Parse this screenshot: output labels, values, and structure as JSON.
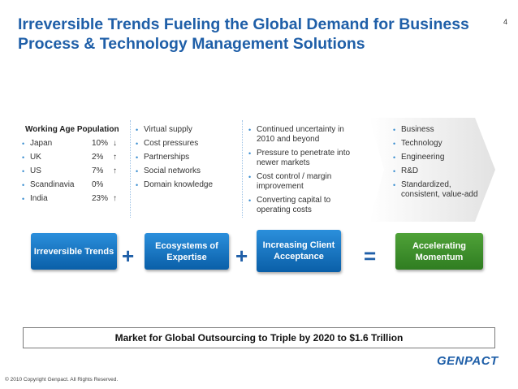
{
  "slide": {
    "title": "Irreversible Trends Fueling the Global Demand for Business Process & Technology Management Solutions",
    "page_number": "4"
  },
  "working_age": {
    "heading": "Working Age Population",
    "rows": [
      {
        "country": "Japan",
        "value": "10%",
        "arrow": "↓"
      },
      {
        "country": "UK",
        "value": "2%",
        "arrow": "↑"
      },
      {
        "country": "US",
        "value": "7%",
        "arrow": "↑"
      },
      {
        "country": "Scandinavia",
        "value": "0%",
        "arrow": ""
      },
      {
        "country": "India",
        "value": "23%",
        "arrow": "↑"
      }
    ]
  },
  "ecosystems_list": [
    "Virtual supply",
    "Cost pressures",
    "Partnerships",
    "Social networks",
    "Domain knowledge"
  ],
  "client_list": [
    "Continued uncertainty in 2010 and beyond",
    "Pressure to penetrate into newer markets",
    "Cost control / margin improvement",
    "Converting capital to operating costs"
  ],
  "momentum_list": [
    "Business",
    "Technology",
    "Engineering",
    "R&D",
    "Standardized, consistent, value-add"
  ],
  "boxes": {
    "irreversible": "Irreversible Trends",
    "ecosystems": "Ecosystems of Expertise",
    "client": "Increasing Client Acceptance",
    "momentum": "Accelerating Momentum"
  },
  "operators": {
    "plus": "+",
    "equals": "="
  },
  "colors": {
    "title_blue": "#1f5fa8",
    "box_blue": "#0f74c6",
    "box_green": "#3c8f2b"
  },
  "market_banner": "Market for Global Outsourcing to Triple by 2020 to $1.6 Trillion",
  "logo": "GENPACT",
  "copyright": "© 2010 Copyright Genpact. All Rights Reserved."
}
